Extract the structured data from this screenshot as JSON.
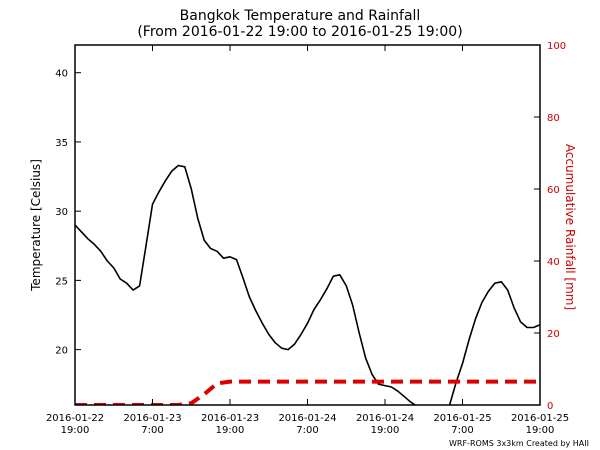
{
  "chart_data": {
    "type": "line",
    "title": "Bangkok Temperature and Rainfall",
    "subtitle": "(From 2016-01-22 19:00 to 2016-01-25 19:00)",
    "ylabel": "Temperature [Celsius]",
    "ylabel_right": "Accumulative Rainfall [mm]",
    "ylim": [
      16,
      42
    ],
    "ylim_right": [
      0,
      100
    ],
    "xlim_hours": [
      0,
      72
    ],
    "yticks": [
      20,
      25,
      30,
      35,
      40
    ],
    "yticks_right": [
      0,
      20,
      40,
      60,
      80,
      100
    ],
    "xticks": [
      {
        "hour": 0,
        "line1": "2016-01-22",
        "line2": "19:00"
      },
      {
        "hour": 12,
        "line1": "2016-01-23",
        "line2": "7:00"
      },
      {
        "hour": 24,
        "line1": "2016-01-23",
        "line2": "19:00"
      },
      {
        "hour": 36,
        "line1": "2016-01-24",
        "line2": "7:00"
      },
      {
        "hour": 48,
        "line1": "2016-01-24",
        "line2": "19:00"
      },
      {
        "hour": 60,
        "line1": "2016-01-25",
        "line2": "7:00"
      },
      {
        "hour": 72,
        "line1": "2016-01-25",
        "line2": "19:00"
      }
    ],
    "grid": false,
    "series": [
      {
        "axis": "left",
        "color": "#000000",
        "style": "solid",
        "x_hours": [
          0,
          1,
          2,
          3,
          4,
          5,
          6,
          7,
          8,
          9,
          10,
          11,
          12,
          13,
          14,
          15,
          16,
          17,
          18,
          19,
          20,
          21,
          22,
          23,
          24,
          25,
          26,
          27,
          28,
          29,
          30,
          31,
          32,
          33,
          34,
          35,
          36,
          37,
          38,
          39,
          40,
          41,
          42,
          43,
          44,
          45,
          46,
          47,
          48,
          49,
          50,
          51,
          52,
          53,
          54,
          55,
          56,
          57,
          58,
          59,
          60,
          61,
          62,
          63,
          64,
          65,
          66,
          67,
          68,
          69,
          70,
          71,
          72
        ],
        "values": [
          29.0,
          28.5,
          28.0,
          27.6,
          27.1,
          26.4,
          25.9,
          25.1,
          24.8,
          24.3,
          24.6,
          27.5,
          30.5,
          31.4,
          32.2,
          32.9,
          33.3,
          33.2,
          31.6,
          29.5,
          27.9,
          27.3,
          27.1,
          26.6,
          26.7,
          26.5,
          25.2,
          23.8,
          22.8,
          21.9,
          21.1,
          20.5,
          20.1,
          20.0,
          20.4,
          21.1,
          21.9,
          22.9,
          23.6,
          24.4,
          25.3,
          25.4,
          24.6,
          23.2,
          21.2,
          19.4,
          18.2,
          17.5,
          17.4,
          17.3,
          17.0,
          16.6,
          16.2,
          15.9,
          15.7,
          15.4,
          15.4,
          15.6,
          16.0,
          17.6,
          19.0,
          20.7,
          22.2,
          23.4,
          24.2,
          24.8,
          24.9,
          24.3,
          23.0,
          22.0,
          21.6,
          21.6,
          21.8
        ]
      },
      {
        "axis": "right",
        "color": "#dd0000",
        "style": "dashed",
        "x_hours": [
          0,
          4,
          8,
          12,
          16,
          18,
          20,
          22,
          24,
          30,
          36,
          42,
          48,
          54,
          60,
          66,
          72
        ],
        "values": [
          0,
          0,
          0,
          0,
          0,
          0.5,
          3,
          6,
          6.5,
          6.5,
          6.5,
          6.5,
          6.5,
          6.5,
          6.5,
          6.5,
          6.5
        ]
      }
    ]
  },
  "footer": {
    "credit": "WRF-ROMS 3x3km   Created by HAII"
  }
}
